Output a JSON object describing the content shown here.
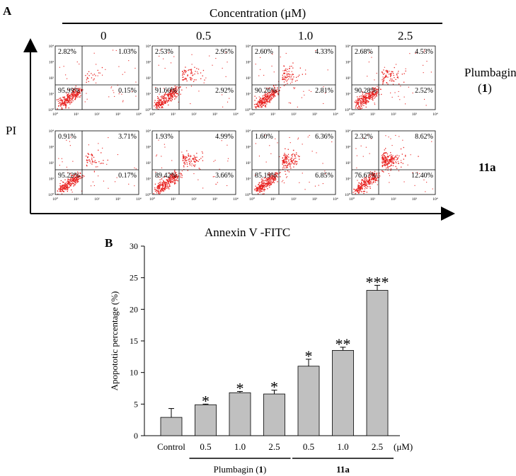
{
  "panel_a": {
    "letter": "A",
    "concentration_label": "Concentration (μM)",
    "concentrations": [
      "0",
      "0.5",
      "1.0",
      "2.5"
    ],
    "y_label": "PI",
    "x_label": "Annexin V -FITC",
    "rows": [
      {
        "label_main": "Plumbagin",
        "label_sub_pre": "(",
        "label_sub_bold": "1",
        "label_sub_post": ")",
        "plots": [
          {
            "ul": "2.82%",
            "ur": "1.03%",
            "ll": "95.99%",
            "lr": "0.15%",
            "apoptotic_fraction": 0.012
          },
          {
            "ul": "2.53%",
            "ur": "2.95%",
            "ll": "91.60%",
            "lr": "2.92%",
            "apoptotic_fraction": 0.059
          },
          {
            "ul": "2.60%",
            "ur": "4.33%",
            "ll": "90.26%",
            "lr": "2.81%",
            "apoptotic_fraction": 0.071
          },
          {
            "ul": "2.68%",
            "ur": "4.53%",
            "ll": "90.28%",
            "lr": "2.52%",
            "apoptotic_fraction": 0.071
          }
        ]
      },
      {
        "label_main": "11a",
        "plots": [
          {
            "ul": "0.91%",
            "ur": "3.71%",
            "ll": "95.22%",
            "lr": "0.17%",
            "apoptotic_fraction": 0.039
          },
          {
            "ul": "1.93%",
            "ur": "4.99%",
            "ll": "89.42%",
            "lr": "3.66%",
            "apoptotic_fraction": 0.087
          },
          {
            "ul": "1.60%",
            "ur": "6.36%",
            "ll": "85.19%",
            "lr": "6.85%",
            "apoptotic_fraction": 0.132
          },
          {
            "ul": "2.32%",
            "ur": "8.62%",
            "ll": "76.67%",
            "lr": "12.40%",
            "apoptotic_fraction": 0.21
          }
        ]
      }
    ],
    "tick_labels": [
      "10⁰",
      "10¹",
      "10²",
      "10³",
      "10⁴"
    ],
    "dot_color": "#e8201e"
  },
  "chart_data": {
    "type": "bar",
    "panel_letter": "B",
    "ylabel": "Apopototic percentage (%)",
    "ylim": [
      0,
      30
    ],
    "yticks": [
      0,
      5,
      10,
      15,
      20,
      25,
      30
    ],
    "categories": [
      "Control",
      "0.5",
      "1.0",
      "2.5",
      "0.5",
      "1.0",
      "2.5"
    ],
    "unit_label": "(μM)",
    "values": [
      2.9,
      4.9,
      6.8,
      6.6,
      11.0,
      13.5,
      23.0
    ],
    "errors": [
      1.4,
      0.1,
      0.2,
      0.6,
      1.1,
      0.5,
      0.8
    ],
    "significance": [
      "",
      "*",
      "*",
      "*",
      "*",
      "**",
      "***"
    ],
    "groups": [
      {
        "label_pre": "Plumbagin (",
        "label_bold": "1",
        "label_post": ")",
        "from": 1,
        "to": 3
      },
      {
        "label_bold": "11a",
        "from": 4,
        "to": 6
      }
    ],
    "bar_color": "#c0c0c0",
    "grid": false
  }
}
